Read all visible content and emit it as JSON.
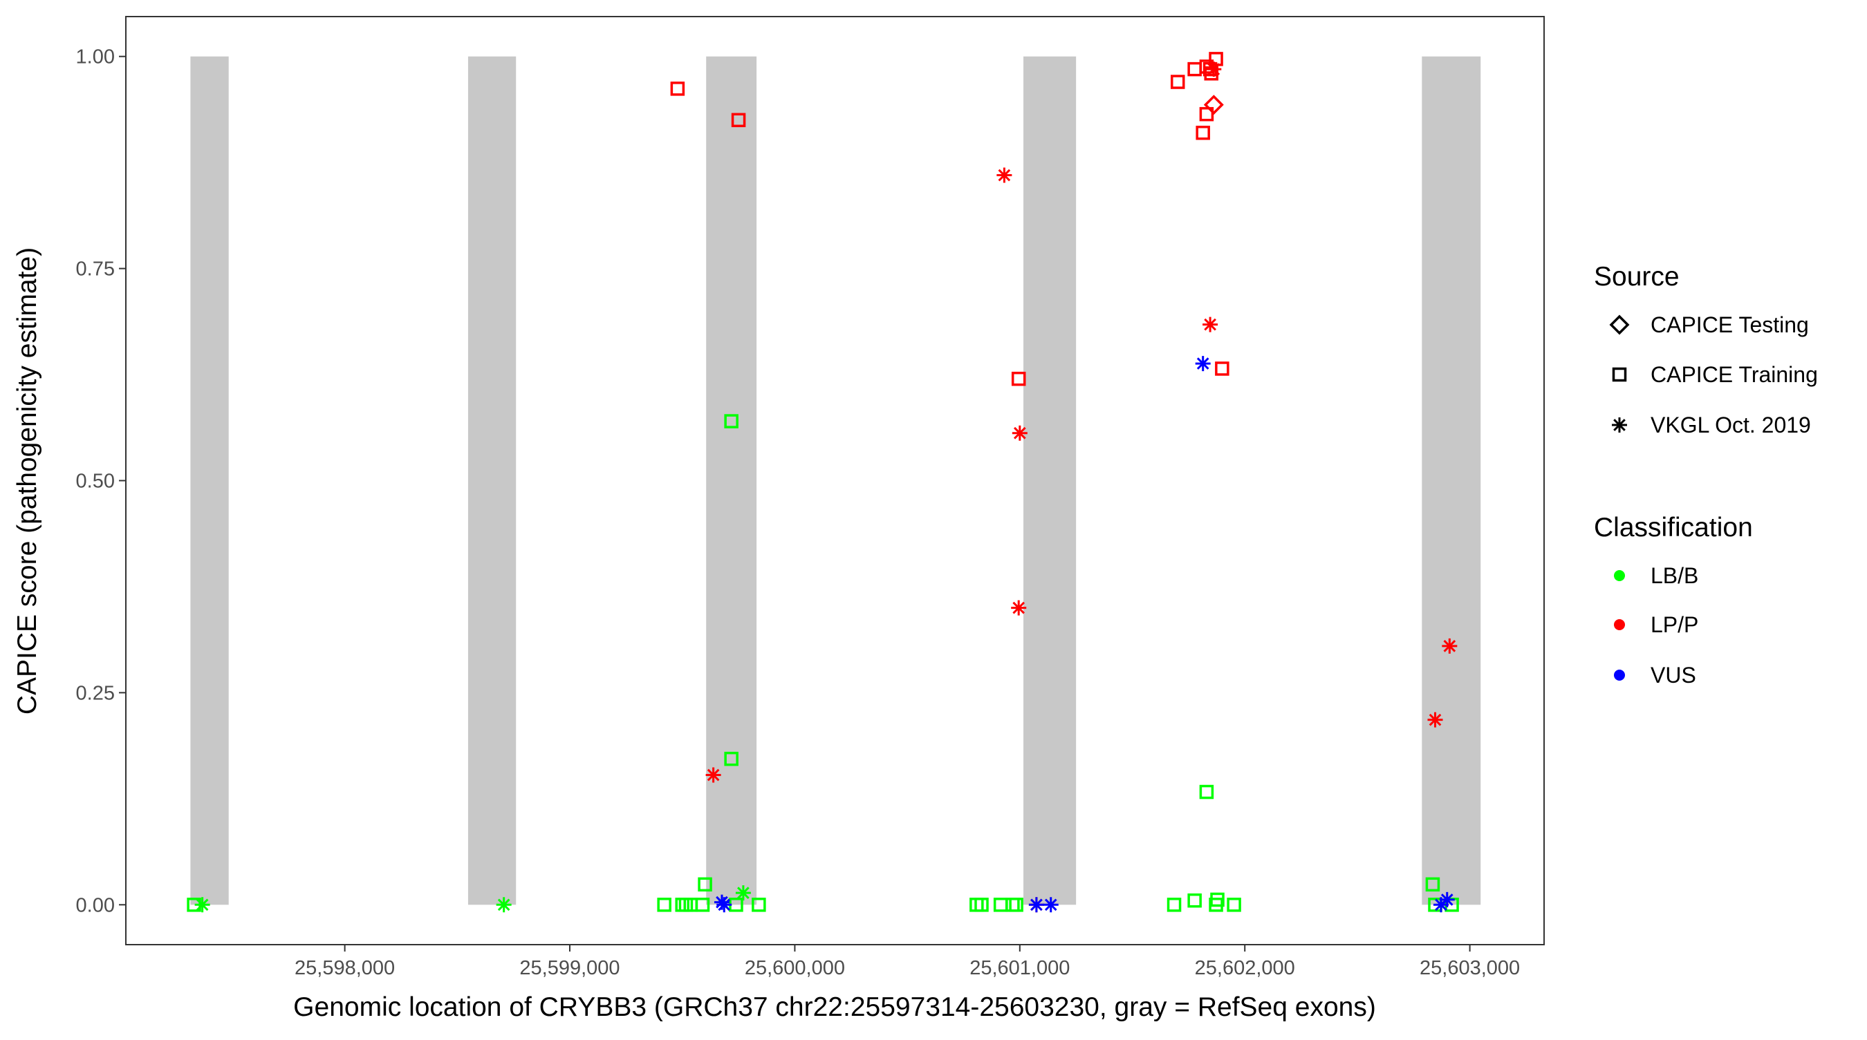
{
  "chart_data": {
    "type": "scatter",
    "xlabel": "Genomic location of CRYBB3 (GRCh37 chr22:25597314-25603230, gray = RefSeq exons)",
    "ylabel": "CAPICE score (pathogenicity estimate)",
    "xlim": [
      25597027,
      25603330
    ],
    "ylim": [
      -0.047,
      1.047
    ],
    "x_ticks": [
      25598000,
      25599000,
      25600000,
      25601000,
      25602000,
      25603000
    ],
    "x_tick_labels": [
      "25,598,000",
      "25,599,000",
      "25,600,000",
      "25,601,000",
      "25,602,000",
      "25,603,000"
    ],
    "y_ticks": [
      0,
      0.25,
      0.5,
      0.75,
      1
    ],
    "y_tick_labels": [
      "0.00",
      "0.25",
      "0.50",
      "0.75",
      "1.00"
    ],
    "grid": false,
    "exons": [
      [
        25597314,
        25597484
      ],
      [
        25598548,
        25598761
      ],
      [
        25599606,
        25599830
      ],
      [
        25601016,
        25601250
      ],
      [
        25602787,
        25603048
      ]
    ],
    "exon_color": "#c8c8c8",
    "legend": {
      "placement": "right",
      "source_title": "Source",
      "sources": [
        {
          "label": "CAPICE Testing",
          "shape": "diamond"
        },
        {
          "label": "CAPICE Training",
          "shape": "square"
        },
        {
          "label": "VKGL Oct. 2019",
          "shape": "asterisk"
        }
      ],
      "class_title": "Classification",
      "classes": [
        {
          "label": "LB/B",
          "color": "#00ff00"
        },
        {
          "label": "LP/P",
          "color": "#ff0000"
        },
        {
          "label": "VUS",
          "color": "#0000ff"
        }
      ]
    },
    "columns": [
      "x",
      "y",
      "source",
      "classification"
    ],
    "points": [
      [
        25597330,
        0,
        "CAPICE Training",
        "LB/B"
      ],
      [
        25599420,
        0,
        "CAPICE Training",
        "LB/B"
      ],
      [
        25599500,
        0,
        "CAPICE Training",
        "LB/B"
      ],
      [
        25599516,
        0,
        "CAPICE Training",
        "LB/B"
      ],
      [
        25599537,
        0,
        "CAPICE Training",
        "LB/B"
      ],
      [
        25599590,
        0,
        "CAPICE Training",
        "LB/B"
      ],
      [
        25599739,
        0,
        "CAPICE Training",
        "LB/B"
      ],
      [
        25599840,
        0,
        "CAPICE Training",
        "LB/B"
      ],
      [
        25600808,
        0,
        "CAPICE Training",
        "LB/B"
      ],
      [
        25600830,
        0,
        "CAPICE Training",
        "LB/B"
      ],
      [
        25600915,
        0,
        "CAPICE Training",
        "LB/B"
      ],
      [
        25600968,
        0,
        "CAPICE Training",
        "LB/B"
      ],
      [
        25600984,
        0,
        "CAPICE Training",
        "LB/B"
      ],
      [
        25601686,
        0,
        "CAPICE Training",
        "LB/B"
      ],
      [
        25601872,
        0,
        "CAPICE Training",
        "LB/B"
      ],
      [
        25601952,
        0,
        "CAPICE Training",
        "LB/B"
      ],
      [
        25602920,
        0,
        "CAPICE Training",
        "LB/B"
      ],
      [
        25602846,
        0,
        "CAPICE Training",
        "LB/B"
      ],
      [
        25601777,
        0.005,
        "CAPICE Training",
        "LB/B"
      ],
      [
        25601878,
        0.006,
        "CAPICE Training",
        "LB/B"
      ],
      [
        25599601,
        0.024,
        "CAPICE Training",
        "LB/B"
      ],
      [
        25602835,
        0.024,
        "CAPICE Training",
        "LB/B"
      ],
      [
        25599718,
        0.57,
        "CAPICE Training",
        "LB/B"
      ],
      [
        25599718,
        0.172,
        "CAPICE Training",
        "LB/B"
      ],
      [
        25601830,
        0.133,
        "CAPICE Training",
        "LB/B"
      ],
      [
        25597367,
        0,
        "VKGL Oct. 2019",
        "LB/B"
      ],
      [
        25598707,
        0,
        "VKGL Oct. 2019",
        "LB/B"
      ],
      [
        25599771,
        0.014,
        "VKGL Oct. 2019",
        "LB/B"
      ],
      [
        25599479,
        0.962,
        "CAPICE Training",
        "LP/P"
      ],
      [
        25599750,
        0.925,
        "CAPICE Training",
        "LP/P"
      ],
      [
        25600995,
        0.62,
        "CAPICE Training",
        "LP/P"
      ],
      [
        25601702,
        0.97,
        "CAPICE Training",
        "LP/P"
      ],
      [
        25601777,
        0.985,
        "CAPICE Training",
        "LP/P"
      ],
      [
        25601830,
        0.988,
        "CAPICE Training",
        "LP/P"
      ],
      [
        25601851,
        0.98,
        "CAPICE Training",
        "LP/P"
      ],
      [
        25601872,
        0.997,
        "CAPICE Training",
        "LP/P"
      ],
      [
        25601846,
        0.985,
        "CAPICE Training",
        "LP/P"
      ],
      [
        25601830,
        0.932,
        "CAPICE Training",
        "LP/P"
      ],
      [
        25601814,
        0.91,
        "CAPICE Training",
        "LP/P"
      ],
      [
        25601899,
        0.632,
        "CAPICE Training",
        "LP/P"
      ],
      [
        25601862,
        0.943,
        "CAPICE Testing",
        "LP/P"
      ],
      [
        25600931,
        0.86,
        "VKGL Oct. 2019",
        "LP/P"
      ],
      [
        25601862,
        0.985,
        "VKGL Oct. 2019",
        "LP/P"
      ],
      [
        25601846,
        0.684,
        "VKGL Oct. 2019",
        "LP/P"
      ],
      [
        25601000,
        0.556,
        "VKGL Oct. 2019",
        "LP/P"
      ],
      [
        25600995,
        0.35,
        "VKGL Oct. 2019",
        "LP/P"
      ],
      [
        25599638,
        0.153,
        "VKGL Oct. 2019",
        "LP/P"
      ],
      [
        25602910,
        0.305,
        "VKGL Oct. 2019",
        "LP/P"
      ],
      [
        25602846,
        0.218,
        "VKGL Oct. 2019",
        "LP/P"
      ],
      [
        25601074,
        0,
        "VKGL Oct. 2019",
        "LP/P"
      ],
      [
        25599676,
        0.003,
        "VKGL Oct. 2019",
        "VUS"
      ],
      [
        25599686,
        0,
        "VKGL Oct. 2019",
        "VUS"
      ],
      [
        25601814,
        0.638,
        "VKGL Oct. 2019",
        "VUS"
      ],
      [
        25601074,
        0,
        "VKGL Oct. 2019",
        "VUS"
      ],
      [
        25601138,
        0,
        "VKGL Oct. 2019",
        "VUS"
      ],
      [
        25602872,
        0,
        "VKGL Oct. 2019",
        "VUS"
      ],
      [
        25602899,
        0.006,
        "VKGL Oct. 2019",
        "VUS"
      ]
    ]
  }
}
